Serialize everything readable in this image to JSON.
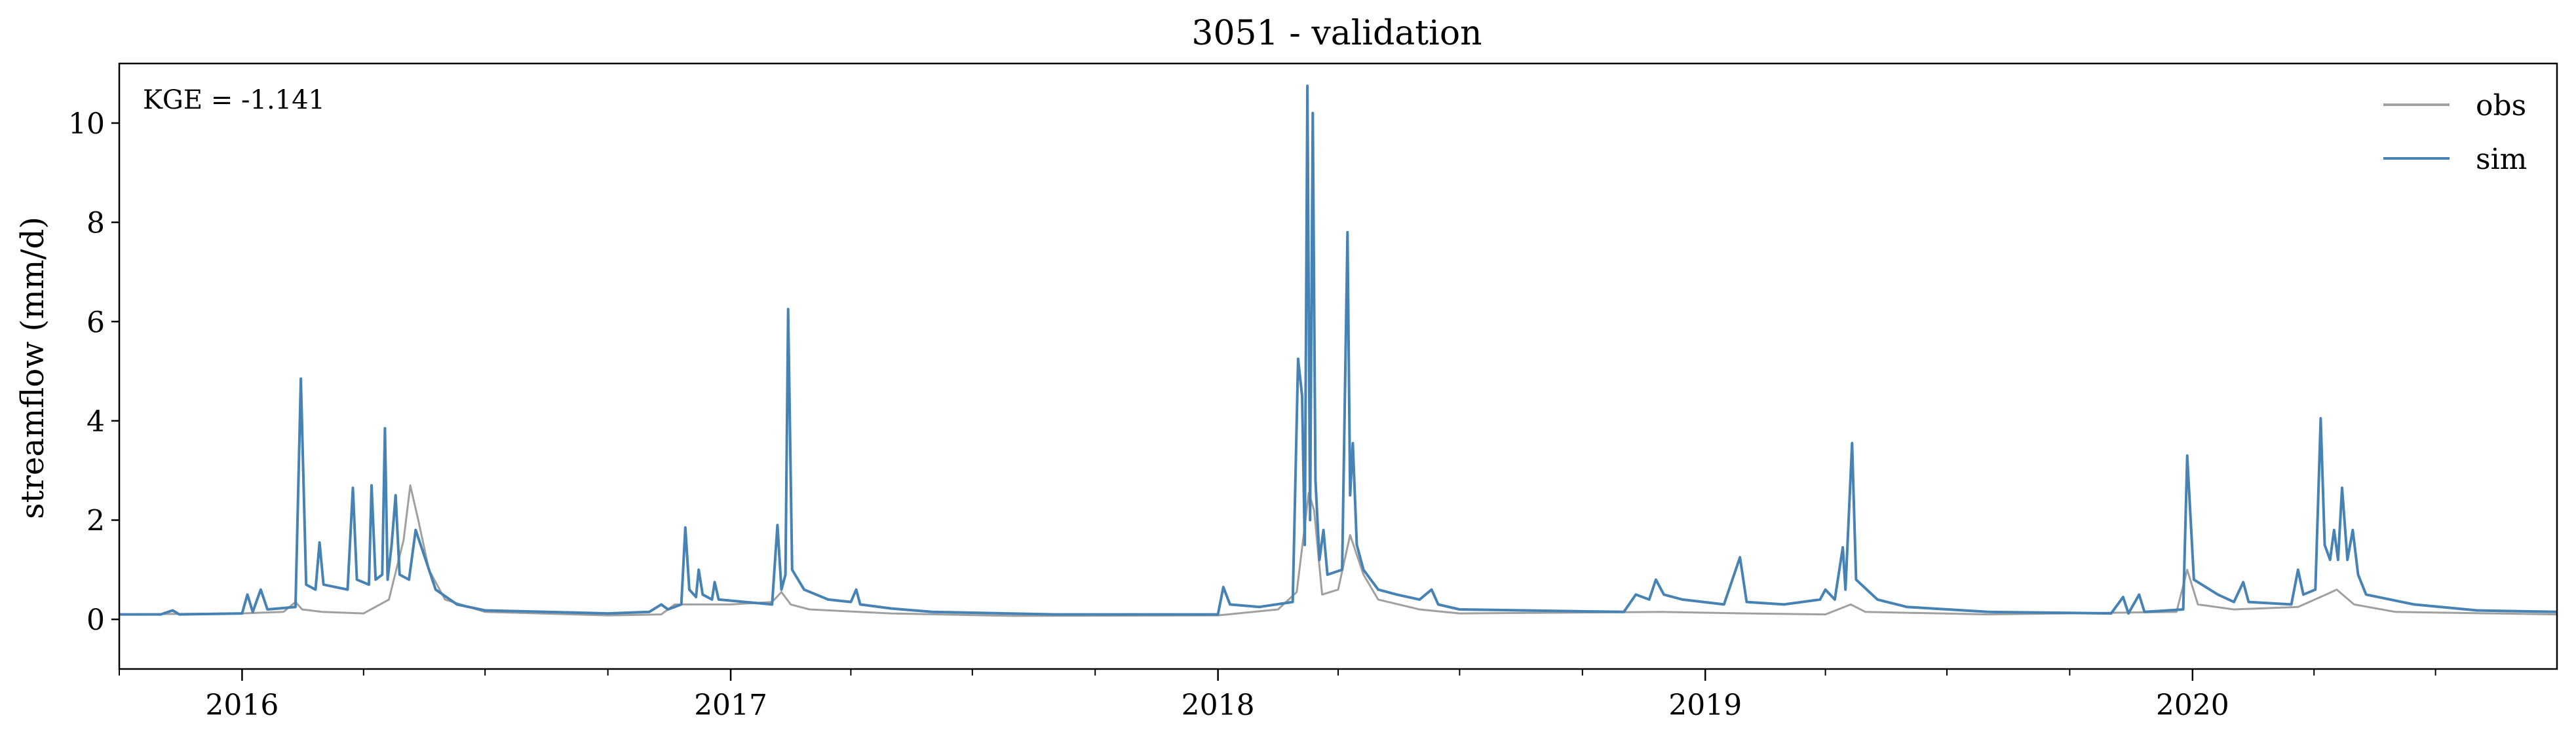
{
  "chart_data": {
    "type": "line",
    "title": "3051 - validation",
    "xlabel": "",
    "ylabel": "streamflow (mm/d)",
    "annotation": "KGE = -1.141",
    "x_range": [
      "2015-10-01",
      "2020-09-30"
    ],
    "ylim": [
      -1,
      11.2
    ],
    "y_ticks": [
      0,
      2,
      4,
      6,
      8,
      10
    ],
    "x_ticks": [
      "2016",
      "2017",
      "2018",
      "2019",
      "2020"
    ],
    "grid": false,
    "legend_position": "top-right",
    "series": [
      {
        "name": "obs",
        "color": "#a0a0a0",
        "points": [
          [
            "2015-10-01",
            0.1
          ],
          [
            "2016-01-01",
            0.12
          ],
          [
            "2016-02-01",
            0.15
          ],
          [
            "2016-02-10",
            0.35
          ],
          [
            "2016-02-15",
            0.2
          ],
          [
            "2016-03-01",
            0.15
          ],
          [
            "2016-04-01",
            0.12
          ],
          [
            "2016-04-20",
            0.4
          ],
          [
            "2016-05-01",
            1.6
          ],
          [
            "2016-05-06",
            2.7
          ],
          [
            "2016-05-12",
            2.0
          ],
          [
            "2016-05-20",
            1.0
          ],
          [
            "2016-06-01",
            0.4
          ],
          [
            "2016-07-01",
            0.15
          ],
          [
            "2016-10-01",
            0.08
          ],
          [
            "2016-11-10",
            0.1
          ],
          [
            "2016-11-20",
            0.3
          ],
          [
            "2016-12-01",
            0.3
          ],
          [
            "2017-01-01",
            0.3
          ],
          [
            "2017-02-01",
            0.35
          ],
          [
            "2017-02-08",
            0.55
          ],
          [
            "2017-02-15",
            0.3
          ],
          [
            "2017-03-01",
            0.2
          ],
          [
            "2017-05-01",
            0.12
          ],
          [
            "2017-08-01",
            0.07
          ],
          [
            "2018-01-01",
            0.08
          ],
          [
            "2018-02-15",
            0.2
          ],
          [
            "2018-03-01",
            0.55
          ],
          [
            "2018-03-10",
            2.55
          ],
          [
            "2018-03-14",
            2.2
          ],
          [
            "2018-03-20",
            0.5
          ],
          [
            "2018-04-01",
            0.6
          ],
          [
            "2018-04-10",
            1.7
          ],
          [
            "2018-04-20",
            0.9
          ],
          [
            "2018-05-01",
            0.4
          ],
          [
            "2018-06-01",
            0.2
          ],
          [
            "2018-07-01",
            0.12
          ],
          [
            "2018-12-01",
            0.15
          ],
          [
            "2019-02-01",
            0.12
          ],
          [
            "2019-04-01",
            0.1
          ],
          [
            "2019-04-20",
            0.3
          ],
          [
            "2019-05-01",
            0.15
          ],
          [
            "2019-08-01",
            0.1
          ],
          [
            "2019-12-20",
            0.15
          ],
          [
            "2019-12-28",
            1.0
          ],
          [
            "2020-01-05",
            0.3
          ],
          [
            "2020-02-01",
            0.2
          ],
          [
            "2020-03-20",
            0.25
          ],
          [
            "2020-04-10",
            0.5
          ],
          [
            "2020-04-18",
            0.6
          ],
          [
            "2020-05-01",
            0.3
          ],
          [
            "2020-06-01",
            0.15
          ],
          [
            "2020-09-30",
            0.1
          ]
        ]
      },
      {
        "name": "sim",
        "color": "#4682b4",
        "points": [
          [
            "2015-10-01",
            0.1
          ],
          [
            "2015-11-01",
            0.1
          ],
          [
            "2015-11-10",
            0.18
          ],
          [
            "2015-11-15",
            0.1
          ],
          [
            "2016-01-01",
            0.12
          ],
          [
            "2016-01-05",
            0.5
          ],
          [
            "2016-01-09",
            0.15
          ],
          [
            "2016-01-15",
            0.6
          ],
          [
            "2016-01-20",
            0.2
          ],
          [
            "2016-02-10",
            0.25
          ],
          [
            "2016-02-14",
            4.85
          ],
          [
            "2016-02-18",
            0.7
          ],
          [
            "2016-02-25",
            0.6
          ],
          [
            "2016-02-28",
            1.55
          ],
          [
            "2016-03-02",
            0.7
          ],
          [
            "2016-03-20",
            0.6
          ],
          [
            "2016-03-24",
            2.65
          ],
          [
            "2016-03-27",
            0.8
          ],
          [
            "2016-04-05",
            0.7
          ],
          [
            "2016-04-07",
            2.7
          ],
          [
            "2016-04-10",
            0.8
          ],
          [
            "2016-04-15",
            0.9
          ],
          [
            "2016-04-17",
            3.85
          ],
          [
            "2016-04-19",
            0.8
          ],
          [
            "2016-04-22",
            1.5
          ],
          [
            "2016-04-25",
            2.5
          ],
          [
            "2016-04-28",
            0.9
          ],
          [
            "2016-05-05",
            0.8
          ],
          [
            "2016-05-10",
            1.8
          ],
          [
            "2016-05-15",
            1.4
          ],
          [
            "2016-05-25",
            0.6
          ],
          [
            "2016-06-10",
            0.3
          ],
          [
            "2016-07-01",
            0.18
          ],
          [
            "2016-10-01",
            0.12
          ],
          [
            "2016-11-01",
            0.15
          ],
          [
            "2016-11-10",
            0.3
          ],
          [
            "2016-11-15",
            0.2
          ],
          [
            "2016-11-25",
            0.3
          ],
          [
            "2016-11-28",
            1.85
          ],
          [
            "2016-12-01",
            0.6
          ],
          [
            "2016-12-06",
            0.45
          ],
          [
            "2016-12-08",
            1.0
          ],
          [
            "2016-12-11",
            0.5
          ],
          [
            "2016-12-18",
            0.4
          ],
          [
            "2016-12-20",
            0.75
          ],
          [
            "2016-12-23",
            0.4
          ],
          [
            "2017-02-01",
            0.3
          ],
          [
            "2017-02-05",
            1.9
          ],
          [
            "2017-02-08",
            0.6
          ],
          [
            "2017-02-11",
            0.9
          ],
          [
            "2017-02-13",
            6.25
          ],
          [
            "2017-02-16",
            1.0
          ],
          [
            "2017-02-25",
            0.6
          ],
          [
            "2017-03-15",
            0.4
          ],
          [
            "2017-04-01",
            0.35
          ],
          [
            "2017-04-05",
            0.6
          ],
          [
            "2017-04-08",
            0.3
          ],
          [
            "2017-05-01",
            0.22
          ],
          [
            "2017-06-01",
            0.15
          ],
          [
            "2017-09-01",
            0.1
          ],
          [
            "2018-01-01",
            0.1
          ],
          [
            "2018-01-05",
            0.65
          ],
          [
            "2018-01-10",
            0.3
          ],
          [
            "2018-02-01",
            0.25
          ],
          [
            "2018-02-26",
            0.35
          ],
          [
            "2018-03-02",
            5.25
          ],
          [
            "2018-03-05",
            4.5
          ],
          [
            "2018-03-07",
            1.5
          ],
          [
            "2018-03-09",
            10.75
          ],
          [
            "2018-03-11",
            2.0
          ],
          [
            "2018-03-13",
            10.2
          ],
          [
            "2018-03-15",
            2.8
          ],
          [
            "2018-03-18",
            1.2
          ],
          [
            "2018-03-21",
            1.8
          ],
          [
            "2018-03-24",
            0.9
          ],
          [
            "2018-04-04",
            1.0
          ],
          [
            "2018-04-08",
            7.8
          ],
          [
            "2018-04-10",
            2.5
          ],
          [
            "2018-04-12",
            3.55
          ],
          [
            "2018-04-15",
            1.5
          ],
          [
            "2018-04-20",
            1.0
          ],
          [
            "2018-05-01",
            0.6
          ],
          [
            "2018-05-15",
            0.5
          ],
          [
            "2018-06-01",
            0.4
          ],
          [
            "2018-06-10",
            0.6
          ],
          [
            "2018-06-15",
            0.3
          ],
          [
            "2018-07-01",
            0.2
          ],
          [
            "2018-11-01",
            0.15
          ],
          [
            "2018-11-10",
            0.5
          ],
          [
            "2018-11-20",
            0.4
          ],
          [
            "2018-11-25",
            0.8
          ],
          [
            "2018-12-01",
            0.5
          ],
          [
            "2018-12-15",
            0.4
          ],
          [
            "2019-01-15",
            0.3
          ],
          [
            "2019-01-27",
            1.25
          ],
          [
            "2019-02-01",
            0.35
          ],
          [
            "2019-03-01",
            0.3
          ],
          [
            "2019-03-28",
            0.4
          ],
          [
            "2019-04-01",
            0.6
          ],
          [
            "2019-04-08",
            0.4
          ],
          [
            "2019-04-14",
            1.45
          ],
          [
            "2019-04-16",
            0.6
          ],
          [
            "2019-04-21",
            3.55
          ],
          [
            "2019-04-24",
            0.8
          ],
          [
            "2019-05-10",
            0.4
          ],
          [
            "2019-06-01",
            0.25
          ],
          [
            "2019-08-01",
            0.15
          ],
          [
            "2019-11-01",
            0.12
          ],
          [
            "2019-11-10",
            0.45
          ],
          [
            "2019-11-14",
            0.12
          ],
          [
            "2019-11-22",
            0.5
          ],
          [
            "2019-11-26",
            0.15
          ],
          [
            "2019-12-25",
            0.2
          ],
          [
            "2019-12-28",
            3.3
          ],
          [
            "2020-01-02",
            0.8
          ],
          [
            "2020-01-20",
            0.5
          ],
          [
            "2020-02-01",
            0.35
          ],
          [
            "2020-02-08",
            0.75
          ],
          [
            "2020-02-12",
            0.35
          ],
          [
            "2020-03-15",
            0.3
          ],
          [
            "2020-03-20",
            1.0
          ],
          [
            "2020-03-24",
            0.5
          ],
          [
            "2020-04-02",
            0.6
          ],
          [
            "2020-04-06",
            4.05
          ],
          [
            "2020-04-09",
            1.5
          ],
          [
            "2020-04-13",
            1.2
          ],
          [
            "2020-04-16",
            1.8
          ],
          [
            "2020-04-19",
            1.2
          ],
          [
            "2020-04-22",
            2.65
          ],
          [
            "2020-04-26",
            1.2
          ],
          [
            "2020-04-30",
            1.8
          ],
          [
            "2020-05-04",
            0.9
          ],
          [
            "2020-05-10",
            0.5
          ],
          [
            "2020-06-15",
            0.3
          ],
          [
            "2020-08-01",
            0.18
          ],
          [
            "2020-09-30",
            0.15
          ]
        ]
      }
    ]
  }
}
